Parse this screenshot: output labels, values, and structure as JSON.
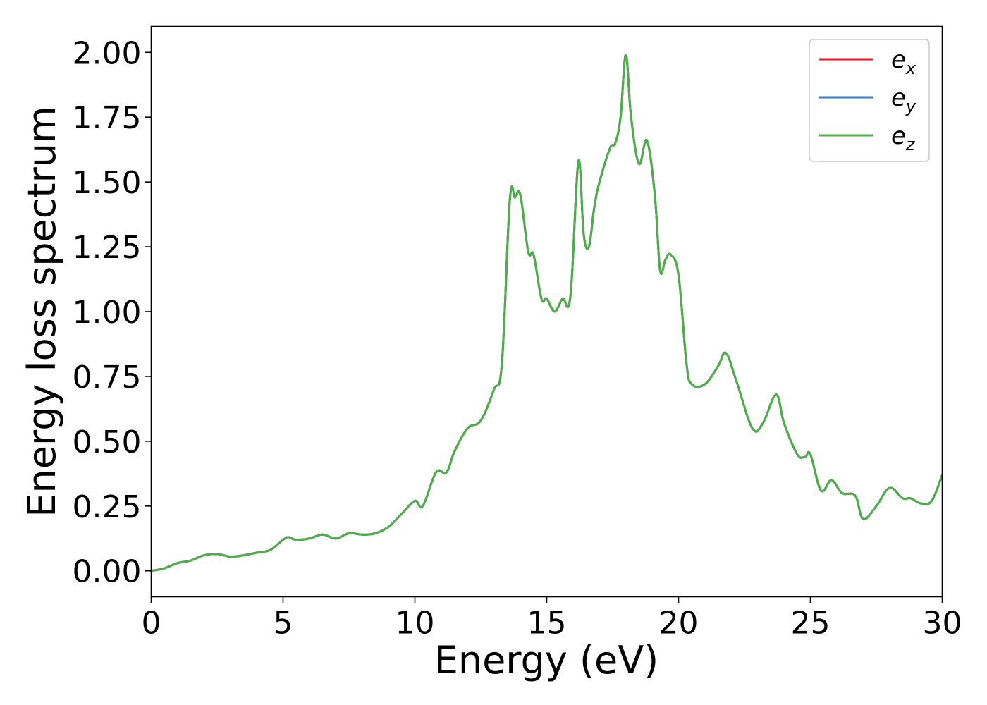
{
  "chart_data": {
    "type": "line",
    "title": "",
    "xlabel": "Energy (eV)",
    "ylabel": "Energy loss spectrum",
    "xlim": [
      0,
      30
    ],
    "ylim": [
      -0.1,
      2.1
    ],
    "x_ticks": [
      "0",
      "5",
      "10",
      "15",
      "20",
      "25",
      "30"
    ],
    "x_tick_values": [
      0,
      5,
      10,
      15,
      20,
      25,
      30
    ],
    "y_ticks": [
      "0.00",
      "0.25",
      "0.50",
      "0.75",
      "1.00",
      "1.25",
      "1.50",
      "1.75",
      "2.00"
    ],
    "y_tick_values": [
      0,
      0.25,
      0.5,
      0.75,
      1.0,
      1.25,
      1.5,
      1.75,
      2.0
    ],
    "grid": false,
    "legend_position": "top-right",
    "series": [
      {
        "name": "e",
        "subscript": "x",
        "color": "#e41a1c"
      },
      {
        "name": "e",
        "subscript": "y",
        "color": "#377eb8"
      },
      {
        "name": "e",
        "subscript": "z",
        "color": "#4daf4a"
      }
    ],
    "x": [
      0,
      0.5,
      1.0,
      1.5,
      2.0,
      2.5,
      3.0,
      3.5,
      4.0,
      4.5,
      5.0,
      5.2,
      5.5,
      6.0,
      6.5,
      7.0,
      7.5,
      8.0,
      8.5,
      9.0,
      9.5,
      10.0,
      10.3,
      10.8,
      11.2,
      11.5,
      12.0,
      12.5,
      13.0,
      13.3,
      13.6,
      13.8,
      14.0,
      14.3,
      14.5,
      14.8,
      15.0,
      15.3,
      15.6,
      15.9,
      16.2,
      16.4,
      16.6,
      16.8,
      17.0,
      17.4,
      17.6,
      17.8,
      18.0,
      18.2,
      18.5,
      18.8,
      19.1,
      19.3,
      19.5,
      19.7,
      20.0,
      20.3,
      20.5,
      21.0,
      21.5,
      21.8,
      22.2,
      22.8,
      23.2,
      23.7,
      24.0,
      24.5,
      24.8,
      25.0,
      25.4,
      25.8,
      26.2,
      26.7,
      27.0,
      27.5,
      28.0,
      28.5,
      28.8,
      29.2,
      29.6,
      30.0
    ],
    "values": [
      0.0,
      0.01,
      0.03,
      0.04,
      0.06,
      0.065,
      0.055,
      0.06,
      0.07,
      0.08,
      0.12,
      0.13,
      0.12,
      0.125,
      0.14,
      0.125,
      0.145,
      0.14,
      0.145,
      0.17,
      0.22,
      0.27,
      0.25,
      0.38,
      0.38,
      0.46,
      0.55,
      0.58,
      0.7,
      0.8,
      1.43,
      1.44,
      1.45,
      1.23,
      1.22,
      1.05,
      1.05,
      1.0,
      1.05,
      1.06,
      1.58,
      1.3,
      1.25,
      1.4,
      1.5,
      1.63,
      1.65,
      1.75,
      1.99,
      1.75,
      1.57,
      1.66,
      1.45,
      1.16,
      1.2,
      1.22,
      1.14,
      0.8,
      0.72,
      0.72,
      0.79,
      0.84,
      0.73,
      0.55,
      0.57,
      0.68,
      0.57,
      0.45,
      0.44,
      0.45,
      0.31,
      0.35,
      0.3,
      0.29,
      0.2,
      0.25,
      0.32,
      0.28,
      0.28,
      0.26,
      0.27,
      0.37
    ]
  }
}
